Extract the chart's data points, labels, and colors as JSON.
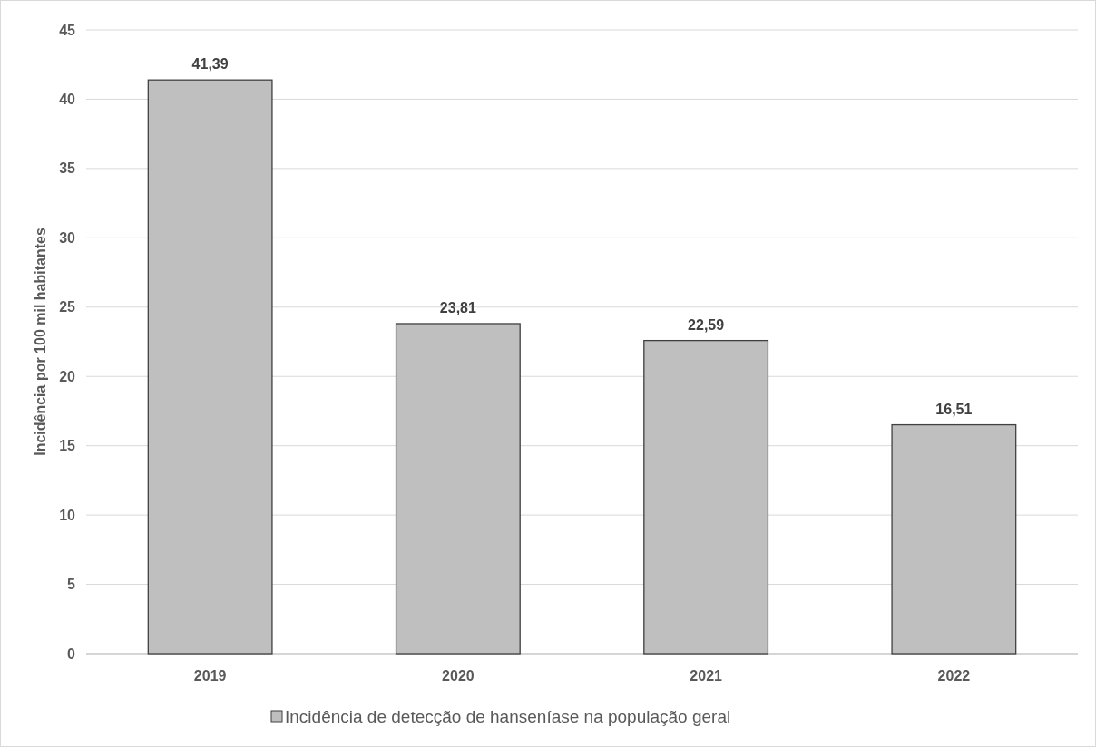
{
  "chart_data": {
    "type": "bar",
    "ylabel": "Incidência por 100 mil habitantes",
    "categories": [
      "2019",
      "2020",
      "2021",
      "2022"
    ],
    "series": [
      {
        "name": "Incidência de detecção de hanseníase na população geral",
        "color": "#bfbfbf",
        "values": [
          41.39,
          23.81,
          22.59,
          16.51
        ],
        "value_labels": [
          "41,39",
          "23,81",
          "22,59",
          "16,51"
        ]
      }
    ],
    "ylim": [
      0,
      45
    ],
    "yticks": [
      0,
      5,
      10,
      15,
      20,
      25,
      30,
      35,
      40,
      45
    ],
    "grid": "y",
    "legend": "bottom"
  }
}
